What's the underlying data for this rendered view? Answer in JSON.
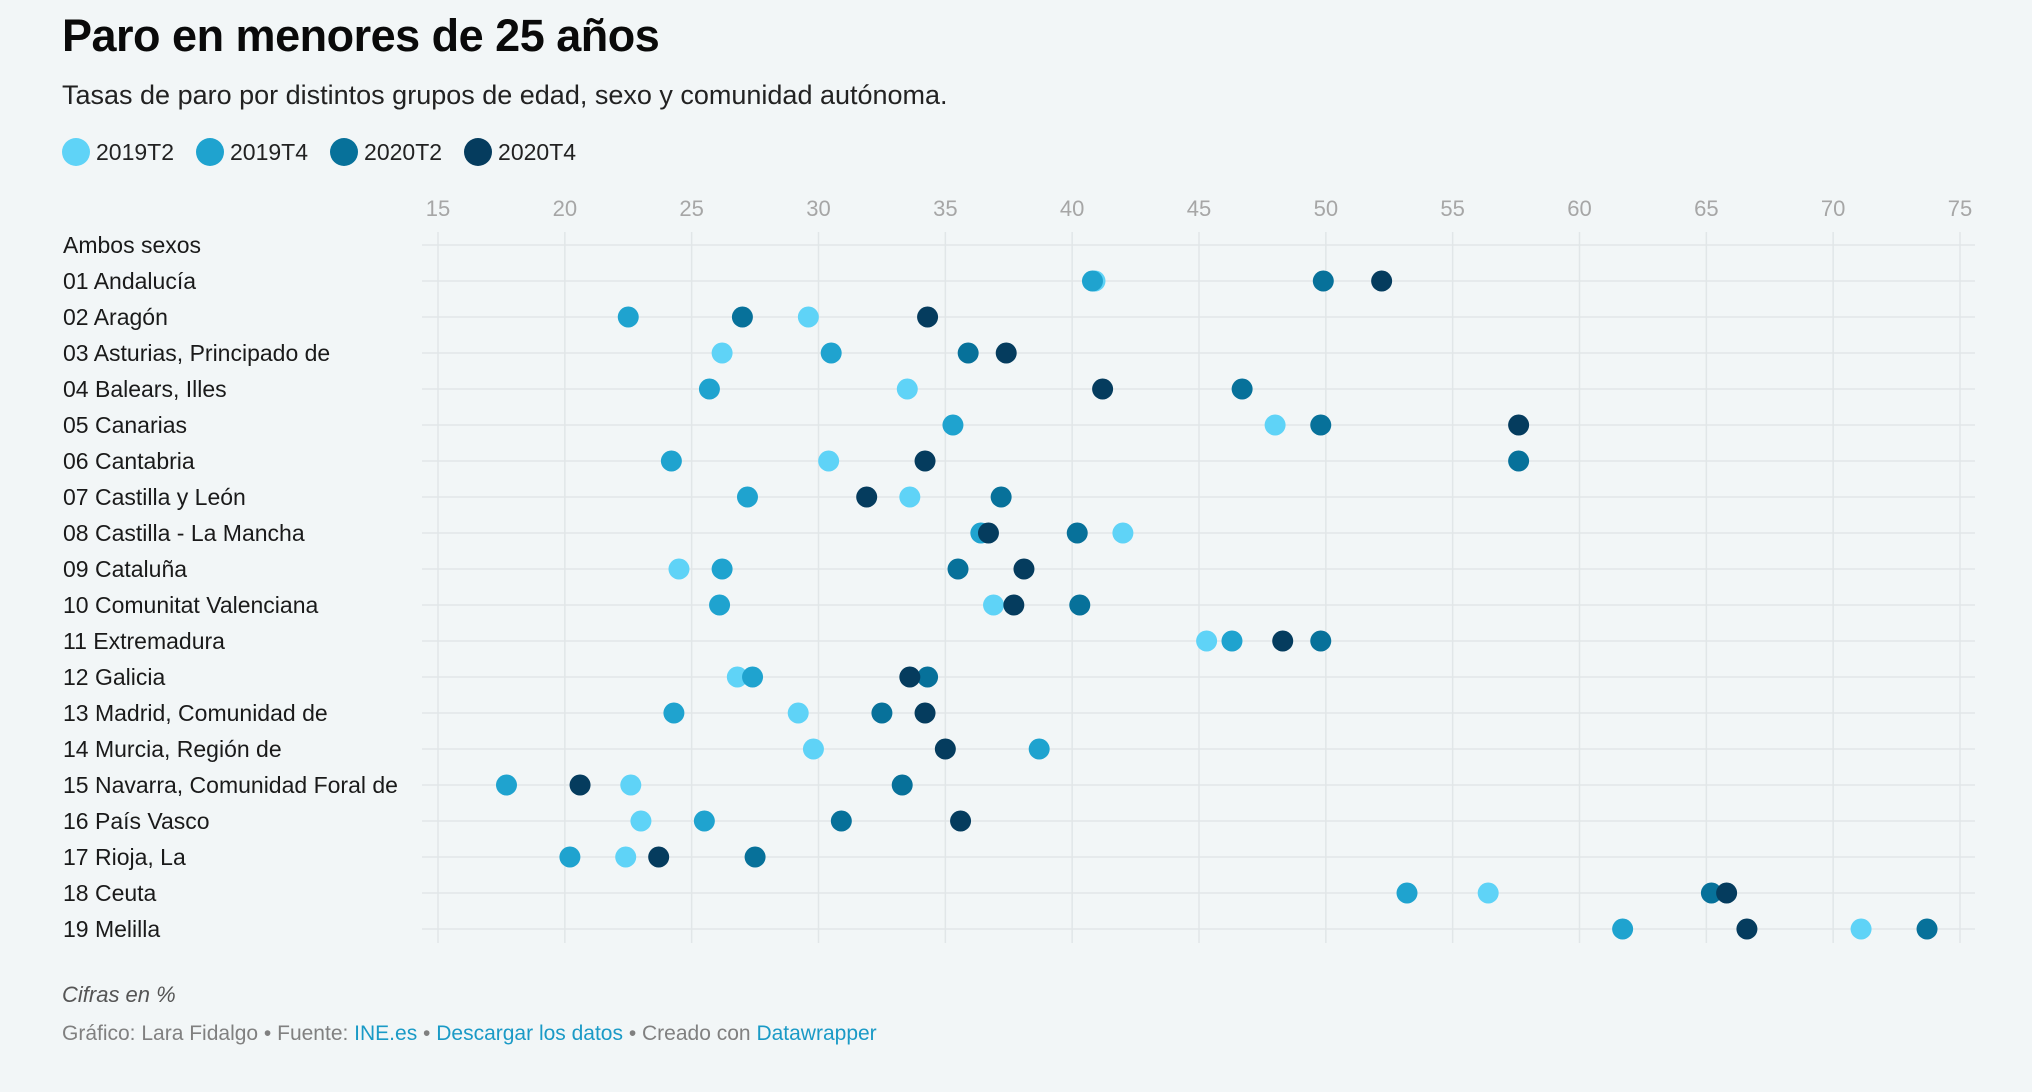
{
  "title": "Paro en menores de 25 años",
  "subtitle": "Tasas de paro por distintos grupos de edad, sexo y comunidad autónoma.",
  "note": "Cifras en %",
  "footer": {
    "prefix": "Gráfico: Lara Fidalgo • Fuente: ",
    "source_link": "INE.es",
    "sep": " • ",
    "download_link": "Descargar los datos",
    "created": " • Creado con ",
    "tool_link": "Datawrapper"
  },
  "chart_data": {
    "type": "scatter",
    "xlim": [
      15,
      75
    ],
    "ticks": [
      15,
      20,
      25,
      30,
      35,
      40,
      45,
      50,
      55,
      60,
      65,
      70,
      75
    ],
    "grid": true,
    "legend_position": "top-left",
    "series": [
      {
        "name": "2019T2",
        "color": "#5fd3f7"
      },
      {
        "name": "2019T4",
        "color": "#1fa3cf"
      },
      {
        "name": "2020T2",
        "color": "#07719a"
      },
      {
        "name": "2020T4",
        "color": "#053c5e"
      }
    ],
    "categories": [
      "Ambos sexos",
      "01 Andalucía",
      "02 Aragón",
      "03 Asturias, Principado de",
      "04 Balears, Illes",
      "05 Canarias",
      "06 Cantabria",
      "07 Castilla y León",
      "08 Castilla - La Mancha",
      "09 Cataluña",
      "10 Comunitat Valenciana",
      "11 Extremadura",
      "12 Galicia",
      "13 Madrid, Comunidad de",
      "14 Murcia, Región de",
      "15 Navarra, Comunidad Foral de",
      "16 País Vasco",
      "17 Rioja, La",
      "18 Ceuta",
      "19 Melilla"
    ],
    "values": [
      [
        null,
        null,
        null,
        null
      ],
      [
        40.9,
        40.8,
        49.9,
        52.2
      ],
      [
        29.6,
        22.5,
        27.0,
        34.3
      ],
      [
        26.2,
        30.5,
        35.9,
        37.4
      ],
      [
        33.5,
        25.7,
        46.7,
        41.2
      ],
      [
        48.0,
        35.3,
        49.8,
        57.6
      ],
      [
        30.4,
        24.2,
        57.6,
        34.2
      ],
      [
        33.6,
        27.2,
        37.2,
        31.9
      ],
      [
        42.0,
        36.4,
        40.2,
        36.7
      ],
      [
        24.5,
        26.2,
        35.5,
        38.1
      ],
      [
        36.9,
        26.1,
        40.3,
        37.7
      ],
      [
        45.3,
        46.3,
        49.8,
        48.3
      ],
      [
        26.8,
        27.4,
        34.3,
        33.6
      ],
      [
        29.2,
        24.3,
        32.5,
        34.2
      ],
      [
        29.8,
        38.7,
        null,
        35.0
      ],
      [
        22.6,
        17.7,
        33.3,
        20.6
      ],
      [
        23.0,
        25.5,
        30.9,
        35.6
      ],
      [
        22.4,
        20.2,
        27.5,
        23.7
      ],
      [
        56.4,
        53.2,
        65.2,
        65.8
      ],
      [
        71.1,
        61.7,
        73.7,
        66.6
      ]
    ]
  }
}
